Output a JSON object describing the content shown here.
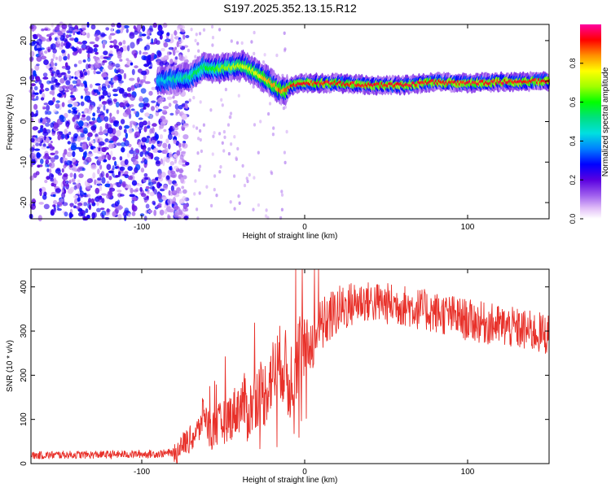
{
  "title": "S197.2025.352.13.15.R12",
  "chart_data": [
    {
      "type": "heatmap",
      "title": "S197.2025.352.13.15.R12",
      "xlabel": "Height of straight line (km)",
      "ylabel": "Frequency (Hz)",
      "xlim": [
        -168,
        150
      ],
      "ylim": [
        -24,
        24
      ],
      "xticks": [
        -100,
        0,
        100
      ],
      "yticks": [
        -20,
        -10,
        0,
        10,
        20
      ],
      "colorbar": {
        "label": "Normalized spectral amplitude",
        "range": [
          0,
          1
        ],
        "ticks": [
          0.0,
          0.2,
          0.4,
          0.6,
          0.8
        ]
      },
      "ridge": {
        "description_points_x": [
          -90,
          -80,
          -70,
          -62,
          -55,
          -45,
          -38,
          -30,
          -22,
          -16,
          -12,
          -8,
          0,
          20,
          40,
          60,
          80,
          100,
          120,
          150
        ],
        "frequency_hz": [
          10,
          10.5,
          11,
          13.5,
          13,
          13.5,
          14,
          12,
          10,
          8,
          7.5,
          9,
          9.5,
          9.5,
          9,
          9,
          9.8,
          9.5,
          9.8,
          10
        ],
        "noise_region_x": [
          -168,
          -80
        ]
      }
    },
    {
      "type": "line",
      "xlabel": "Height of straight line (km)",
      "ylabel": "SNR (10 * v/v)",
      "xlim": [
        -168,
        150
      ],
      "ylim": [
        0,
        440
      ],
      "xticks": [
        -100,
        0,
        100
      ],
      "yticks": [
        0,
        100,
        200,
        300,
        400
      ],
      "series": [
        {
          "name": "SNR",
          "color": "#e8312a",
          "x": [
            -168,
            -150,
            -130,
            -110,
            -90,
            -80,
            -75,
            -70,
            -65,
            -62,
            -58,
            -55,
            -50,
            -45,
            -40,
            -37,
            -35,
            -30,
            -27,
            -25,
            -20,
            -15,
            -12,
            -10,
            -8,
            -5,
            -3,
            0,
            5,
            10,
            15,
            20,
            25,
            30,
            35,
            40,
            50,
            60,
            70,
            80,
            90,
            100,
            110,
            120,
            130,
            140,
            150
          ],
          "values": [
            18,
            20,
            20,
            21,
            22,
            25,
            45,
            55,
            75,
            120,
            70,
            80,
            95,
            110,
            130,
            140,
            110,
            150,
            165,
            155,
            200,
            230,
            220,
            175,
            200,
            240,
            250,
            250,
            280,
            310,
            330,
            345,
            355,
            362,
            368,
            366,
            362,
            358,
            350,
            342,
            335,
            325,
            318,
            312,
            305,
            298,
            292
          ]
        }
      ]
    }
  ]
}
